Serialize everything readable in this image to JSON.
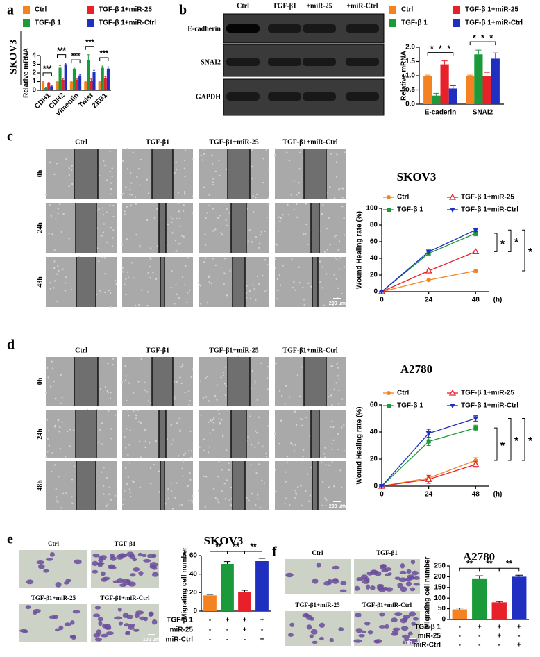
{
  "panel_letters": [
    "a",
    "b",
    "c",
    "d",
    "e",
    "f"
  ],
  "blot": {
    "lanes": [
      "Ctrl",
      "TGF-β1",
      "+miR-25",
      "+miR-Ctrl"
    ],
    "proteins": [
      "E-cadherin",
      "SNAI2",
      "GAPDH"
    ]
  },
  "wound_c": {
    "conditions": [
      "Ctrl",
      "TGF-β1",
      "TGF-β1+miR-25",
      "TGF-β1+miR-Ctrl"
    ],
    "times": [
      "0h",
      "24h",
      "48h"
    ],
    "scale_bar": "200 μm"
  },
  "wound_d": {
    "conditions": [
      "Ctrl",
      "TGF-β1",
      "TGF-β1+miR-25",
      "TGF-β1+miR-Ctrl"
    ],
    "times": [
      "0h",
      "24h",
      "48h"
    ],
    "scale_bar": "200 μm"
  },
  "transwell_e": {
    "conditions": [
      "Ctrl",
      "TGF-β1",
      "TGF-β1+miR-25",
      "TGF-β1+miR-Ctrl"
    ],
    "scale_bar": "100 μm"
  },
  "transwell_f": {
    "conditions": [
      "Ctrl",
      "TGF-β1",
      "TGF-β1+miR-25",
      "TGF-β1+miR-Ctrl"
    ],
    "scale_bar": "100 μm"
  },
  "chart_data": [
    {
      "type": "bar",
      "title": "SKOV3",
      "ylabel": "Relative mRNA",
      "categories": [
        "CDH1",
        "CDH2",
        "Vimentin",
        "Twist",
        "ZEB1"
      ],
      "series": [
        {
          "name": "Ctrl",
          "color": "#f58220",
          "values": [
            1,
            1,
            1,
            1,
            1
          ],
          "errors": [
            0.05,
            0.05,
            0.05,
            0.05,
            0.05
          ]
        },
        {
          "name": "TGF-β 1",
          "color": "#1a9a3a",
          "values": [
            0.3,
            2.6,
            2.4,
            3.5,
            2.6
          ],
          "errors": [
            0.05,
            0.25,
            0.15,
            0.6,
            0.2
          ]
        },
        {
          "name": "TGF-β 1+miR-25",
          "color": "#e8202a",
          "values": [
            0.8,
            1.2,
            1.2,
            1.1,
            1.4
          ],
          "errors": [
            0.1,
            0.1,
            0.1,
            0.2,
            0.15
          ]
        },
        {
          "name": "TGF-β 1+miR-Ctrl",
          "color": "#1f2fbf",
          "values": [
            0.45,
            3.0,
            1.7,
            2.1,
            2.5
          ],
          "errors": [
            0.05,
            0.15,
            0.15,
            0.2,
            0.2
          ]
        }
      ],
      "ylim": [
        0,
        4
      ],
      "yticks": [
        0,
        1,
        2,
        3,
        4
      ],
      "significance_label": "*"
    },
    {
      "type": "bar",
      "ylabel": "Relative mRNA",
      "categories": [
        "E-caderin",
        "SNAI2"
      ],
      "series": [
        {
          "name": "Ctrl",
          "color": "#f58220",
          "values": [
            1,
            1
          ],
          "errors": [
            0.02,
            0.02
          ]
        },
        {
          "name": "TGF-β 1",
          "color": "#1a9a3a",
          "values": [
            0.3,
            1.75
          ],
          "errors": [
            0.08,
            0.15
          ]
        },
        {
          "name": "TGF-β 1+miR-25",
          "color": "#e8202a",
          "values": [
            1.4,
            1.0
          ],
          "errors": [
            0.12,
            0.12
          ]
        },
        {
          "name": "TGF-β 1+miR-Ctrl",
          "color": "#1f2fbf",
          "values": [
            0.55,
            1.6
          ],
          "errors": [
            0.1,
            0.2
          ]
        }
      ],
      "ylim": [
        0,
        2
      ],
      "yticks": [
        {
          "value": 0,
          "label": "0.0"
        },
        0.5,
        {
          "value": 1,
          "label": "1.0"
        },
        1.5,
        {
          "value": 2,
          "label": "2.0"
        }
      ],
      "significance_label": "*"
    },
    {
      "type": "line",
      "title": "SKOV3",
      "ylabel": "Wound Healing rate (%)",
      "xlabel": "(h)",
      "x": [
        0,
        24,
        48
      ],
      "xlim": [
        0,
        55
      ],
      "xticks": [
        0,
        24,
        48
      ],
      "ylim": [
        0,
        100
      ],
      "yticks": [
        0,
        20,
        40,
        60,
        80,
        100
      ],
      "significance_label": "*",
      "series": [
        {
          "name": "Ctrl",
          "color": "#f58220",
          "marker": "circle",
          "values": [
            0,
            14,
            25
          ],
          "errors": [
            0,
            1,
            2
          ]
        },
        {
          "name": "TGF-β 1",
          "color": "#1a9a3a",
          "marker": "square",
          "values": [
            0,
            46,
            70
          ],
          "errors": [
            0,
            2,
            3
          ]
        },
        {
          "name": "TGF-β 1+miR-25",
          "color": "#e8202a",
          "marker": "triangle-open",
          "values": [
            0,
            25,
            48
          ],
          "errors": [
            0,
            1,
            1
          ]
        },
        {
          "name": "TGF-β 1+miR-Ctrl",
          "color": "#1f2fbf",
          "marker": "triangle-down",
          "values": [
            0,
            48,
            74
          ],
          "errors": [
            0,
            2,
            2
          ]
        }
      ]
    },
    {
      "type": "line",
      "title": "A2780",
      "ylabel": "Wound Healing rate (%)",
      "xlabel": "(h)",
      "x": [
        0,
        24,
        48
      ],
      "xlim": [
        0,
        55
      ],
      "xticks": [
        0,
        24,
        48
      ],
      "ylim": [
        0,
        60
      ],
      "yticks": [
        0,
        20,
        40,
        60
      ],
      "significance_label": "*",
      "series": [
        {
          "name": "Ctrl",
          "color": "#f58220",
          "marker": "circle",
          "values": [
            0,
            6,
            19
          ],
          "errors": [
            0,
            2,
            2
          ]
        },
        {
          "name": "TGF-β 1",
          "color": "#1a9a3a",
          "marker": "square",
          "values": [
            0,
            33,
            43
          ],
          "errors": [
            0,
            3,
            2
          ]
        },
        {
          "name": "TGF-β 1+miR-25",
          "color": "#e8202a",
          "marker": "triangle-open",
          "values": [
            0,
            5,
            16
          ],
          "errors": [
            0,
            3,
            2
          ]
        },
        {
          "name": "TGF-β 1+miR-Ctrl",
          "color": "#1f2fbf",
          "marker": "triangle-down",
          "values": [
            0,
            39,
            50
          ],
          "errors": [
            0,
            3,
            2
          ]
        }
      ]
    },
    {
      "type": "bar",
      "title": "SKOV3",
      "ylabel": "Migrating cell number",
      "values": [
        17,
        51,
        21,
        54
      ],
      "errors": [
        1,
        2.5,
        1.5,
        3
      ],
      "colors": [
        "#f58220",
        "#1a9a3a",
        "#e8202a",
        "#1f2fbf"
      ],
      "ylim": [
        0,
        60
      ],
      "yticks": [
        0,
        20,
        40,
        60
      ],
      "significance_label": "**",
      "conditions": [
        {
          "name": "TGF-β 1",
          "marks": [
            "-",
            "+",
            "+",
            "+"
          ]
        },
        {
          "name": "miR-25",
          "marks": [
            "-",
            "-",
            "+",
            "-"
          ]
        },
        {
          "name": "miR-Ctrl",
          "marks": [
            "-",
            "-",
            "-",
            "+"
          ]
        }
      ]
    },
    {
      "type": "bar",
      "title": "A2780",
      "ylabel": "Migrating cell number",
      "values": [
        47,
        192,
        80,
        200
      ],
      "errors": [
        6,
        12,
        4,
        7
      ],
      "colors": [
        "#f58220",
        "#1a9a3a",
        "#e8202a",
        "#1f2fbf"
      ],
      "ylim": [
        0,
        250
      ],
      "yticks": [
        0,
        50,
        100,
        150,
        200,
        250
      ],
      "significance_label": "**",
      "conditions": [
        {
          "name": "TGF-β 1",
          "marks": [
            "-",
            "+",
            "+",
            "+"
          ]
        },
        {
          "name": "miR-25",
          "marks": [
            "-",
            "-",
            "+",
            "-"
          ]
        },
        {
          "name": "miR-Ctrl",
          "marks": [
            "-",
            "-",
            "-",
            "+"
          ]
        }
      ]
    }
  ]
}
